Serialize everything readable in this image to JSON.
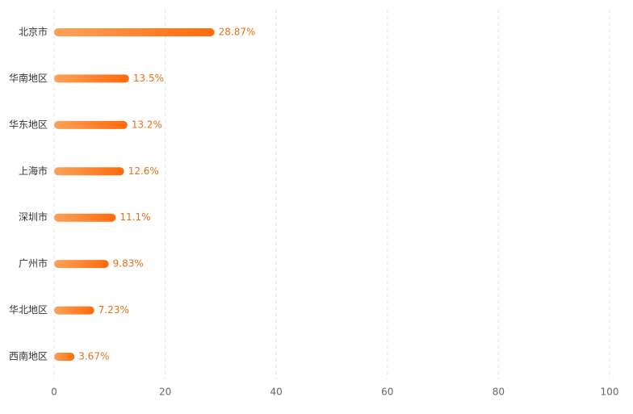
{
  "chart_data": {
    "type": "bar",
    "orientation": "horizontal",
    "categories": [
      "北京市",
      "华南地区",
      "华东地区",
      "上海市",
      "深圳市",
      "广州市",
      "华北地区",
      "西南地区"
    ],
    "values": [
      28.87,
      13.5,
      13.2,
      12.6,
      11.1,
      9.83,
      7.23,
      3.67
    ],
    "value_labels": [
      "28.87%",
      "13.5%",
      "13.2%",
      "12.6%",
      "11.1%",
      "9.83%",
      "7.23%",
      "3.67%"
    ],
    "gradient": [
      "#fba25b",
      "#ff6a0a"
    ],
    "xlim": [
      0,
      100
    ],
    "xticks": [
      0,
      20,
      40,
      60,
      80,
      100
    ],
    "grid": true
  }
}
